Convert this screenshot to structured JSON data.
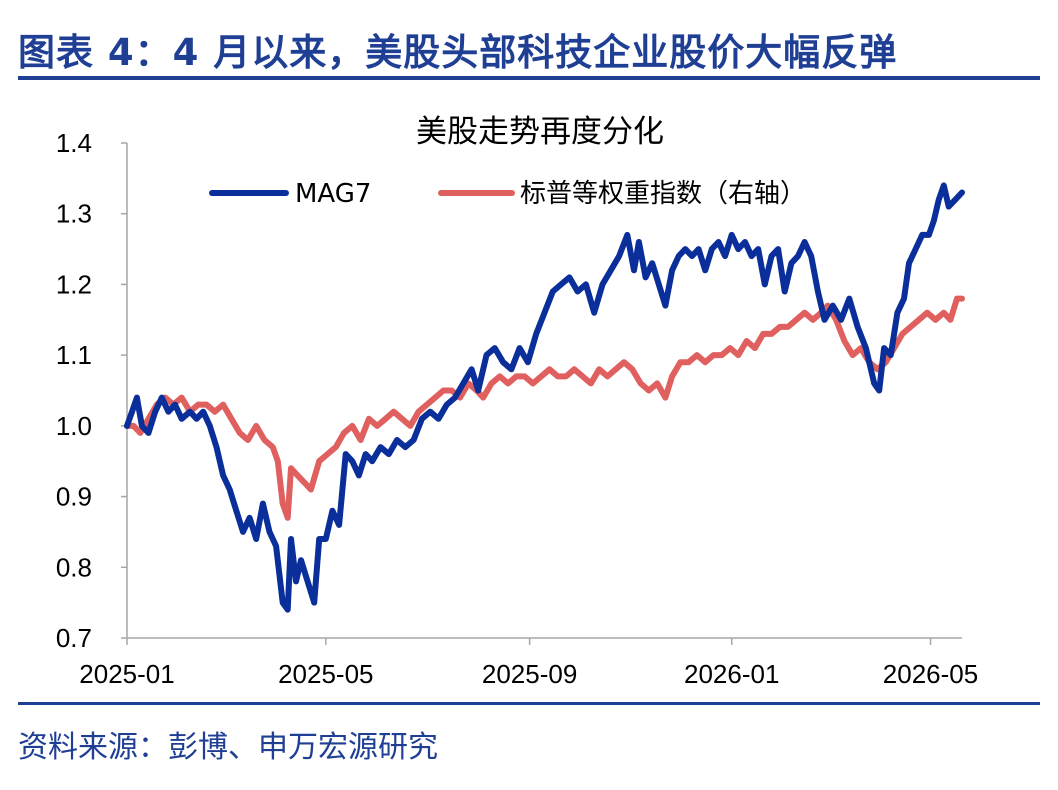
{
  "figure_title": "图表 4：4 月以来，美股头部科技企业股价大幅反弹",
  "source": "资料来源：彭博、申万宏源研究",
  "colors": {
    "accent": "#1f3f95",
    "mag7": "#0b2f9a",
    "ew": "#e06060"
  },
  "chart_data": {
    "type": "line",
    "title": "美股走势再度分化",
    "xlabel": "",
    "ylabel": "",
    "ylim": [
      0.7,
      1.4
    ],
    "y_ticks": [
      "1.4",
      "1.3",
      "1.2",
      "1.1",
      "1.0",
      "0.9",
      "0.8",
      "0.7"
    ],
    "x_range": [
      "2025-01-01",
      "2026-05-20"
    ],
    "x_ticks": [
      {
        "date": "2025-01-01",
        "label": "2025-01"
      },
      {
        "date": "2025-05-01",
        "label": "2025-05"
      },
      {
        "date": "2025-09-01",
        "label": "2025-09"
      },
      {
        "date": "2026-01-01",
        "label": "2026-01"
      },
      {
        "date": "2026-05-01",
        "label": "2026-05"
      }
    ],
    "grid": false,
    "legend_position": "top",
    "series": [
      {
        "name": "MAG7",
        "color": "#0b2f9a",
        "points": [
          [
            "2025-01-01",
            1.0
          ],
          [
            "2025-01-04",
            1.02
          ],
          [
            "2025-01-07",
            1.04
          ],
          [
            "2025-01-10",
            1.0
          ],
          [
            "2025-01-14",
            0.99
          ],
          [
            "2025-01-18",
            1.02
          ],
          [
            "2025-01-22",
            1.04
          ],
          [
            "2025-01-26",
            1.02
          ],
          [
            "2025-01-30",
            1.03
          ],
          [
            "2025-02-03",
            1.01
          ],
          [
            "2025-02-08",
            1.02
          ],
          [
            "2025-02-12",
            1.01
          ],
          [
            "2025-02-16",
            1.02
          ],
          [
            "2025-02-20",
            1.0
          ],
          [
            "2025-02-24",
            0.97
          ],
          [
            "2025-02-28",
            0.93
          ],
          [
            "2025-03-04",
            0.91
          ],
          [
            "2025-03-08",
            0.88
          ],
          [
            "2025-03-12",
            0.85
          ],
          [
            "2025-03-16",
            0.87
          ],
          [
            "2025-03-20",
            0.84
          ],
          [
            "2025-03-24",
            0.89
          ],
          [
            "2025-03-28",
            0.85
          ],
          [
            "2025-04-01",
            0.83
          ],
          [
            "2025-04-03",
            0.79
          ],
          [
            "2025-04-05",
            0.75
          ],
          [
            "2025-04-08",
            0.74
          ],
          [
            "2025-04-10",
            0.84
          ],
          [
            "2025-04-13",
            0.78
          ],
          [
            "2025-04-16",
            0.81
          ],
          [
            "2025-04-20",
            0.78
          ],
          [
            "2025-04-24",
            0.75
          ],
          [
            "2025-04-27",
            0.84
          ],
          [
            "2025-05-01",
            0.84
          ],
          [
            "2025-05-05",
            0.88
          ],
          [
            "2025-05-09",
            0.86
          ],
          [
            "2025-05-13",
            0.96
          ],
          [
            "2025-05-17",
            0.95
          ],
          [
            "2025-05-21",
            0.93
          ],
          [
            "2025-05-25",
            0.96
          ],
          [
            "2025-05-29",
            0.95
          ],
          [
            "2025-06-03",
            0.97
          ],
          [
            "2025-06-08",
            0.96
          ],
          [
            "2025-06-13",
            0.98
          ],
          [
            "2025-06-18",
            0.97
          ],
          [
            "2025-06-23",
            0.98
          ],
          [
            "2025-06-28",
            1.01
          ],
          [
            "2025-07-03",
            1.02
          ],
          [
            "2025-07-08",
            1.01
          ],
          [
            "2025-07-13",
            1.03
          ],
          [
            "2025-07-18",
            1.04
          ],
          [
            "2025-07-23",
            1.06
          ],
          [
            "2025-07-28",
            1.08
          ],
          [
            "2025-08-01",
            1.05
          ],
          [
            "2025-08-06",
            1.1
          ],
          [
            "2025-08-11",
            1.11
          ],
          [
            "2025-08-16",
            1.09
          ],
          [
            "2025-08-21",
            1.08
          ],
          [
            "2025-08-26",
            1.11
          ],
          [
            "2025-08-31",
            1.09
          ],
          [
            "2025-09-05",
            1.13
          ],
          [
            "2025-09-10",
            1.16
          ],
          [
            "2025-09-15",
            1.19
          ],
          [
            "2025-09-20",
            1.2
          ],
          [
            "2025-09-25",
            1.21
          ],
          [
            "2025-09-30",
            1.19
          ],
          [
            "2025-10-05",
            1.2
          ],
          [
            "2025-10-10",
            1.16
          ],
          [
            "2025-10-15",
            1.2
          ],
          [
            "2025-10-20",
            1.22
          ],
          [
            "2025-10-25",
            1.24
          ],
          [
            "2025-10-30",
            1.27
          ],
          [
            "2025-11-03",
            1.22
          ],
          [
            "2025-11-06",
            1.26
          ],
          [
            "2025-11-10",
            1.21
          ],
          [
            "2025-11-14",
            1.23
          ],
          [
            "2025-11-18",
            1.2
          ],
          [
            "2025-11-22",
            1.17
          ],
          [
            "2025-11-26",
            1.22
          ],
          [
            "2025-11-30",
            1.24
          ],
          [
            "2025-12-04",
            1.25
          ],
          [
            "2025-12-08",
            1.24
          ],
          [
            "2025-12-12",
            1.25
          ],
          [
            "2025-12-16",
            1.22
          ],
          [
            "2025-12-20",
            1.25
          ],
          [
            "2025-12-24",
            1.26
          ],
          [
            "2025-12-28",
            1.24
          ],
          [
            "2026-01-01",
            1.27
          ],
          [
            "2026-01-05",
            1.25
          ],
          [
            "2026-01-09",
            1.26
          ],
          [
            "2026-01-13",
            1.24
          ],
          [
            "2026-01-17",
            1.25
          ],
          [
            "2026-01-21",
            1.2
          ],
          [
            "2026-01-25",
            1.24
          ],
          [
            "2026-01-29",
            1.25
          ],
          [
            "2026-02-02",
            1.19
          ],
          [
            "2026-02-06",
            1.23
          ],
          [
            "2026-02-10",
            1.24
          ],
          [
            "2026-02-14",
            1.26
          ],
          [
            "2026-02-18",
            1.24
          ],
          [
            "2026-02-22",
            1.19
          ],
          [
            "2026-02-26",
            1.15
          ],
          [
            "2026-03-03",
            1.17
          ],
          [
            "2026-03-08",
            1.15
          ],
          [
            "2026-03-13",
            1.18
          ],
          [
            "2026-03-18",
            1.14
          ],
          [
            "2026-03-23",
            1.11
          ],
          [
            "2026-03-28",
            1.06
          ],
          [
            "2026-03-31",
            1.05
          ],
          [
            "2026-04-03",
            1.11
          ],
          [
            "2026-04-07",
            1.1
          ],
          [
            "2026-04-11",
            1.16
          ],
          [
            "2026-04-15",
            1.18
          ],
          [
            "2026-04-18",
            1.23
          ],
          [
            "2026-04-22",
            1.25
          ],
          [
            "2026-04-26",
            1.27
          ],
          [
            "2026-04-30",
            1.27
          ],
          [
            "2026-05-03",
            1.29
          ],
          [
            "2026-05-06",
            1.32
          ],
          [
            "2026-05-09",
            1.34
          ],
          [
            "2026-05-12",
            1.31
          ],
          [
            "2026-05-16",
            1.32
          ],
          [
            "2026-05-20",
            1.33
          ]
        ]
      },
      {
        "name": "标普等权重指数（右轴）",
        "color": "#e06060",
        "points": [
          [
            "2025-01-01",
            1.0
          ],
          [
            "2025-01-05",
            1.0
          ],
          [
            "2025-01-09",
            0.99
          ],
          [
            "2025-01-14",
            1.01
          ],
          [
            "2025-01-19",
            1.03
          ],
          [
            "2025-01-24",
            1.04
          ],
          [
            "2025-01-29",
            1.03
          ],
          [
            "2025-02-03",
            1.04
          ],
          [
            "2025-02-08",
            1.02
          ],
          [
            "2025-02-13",
            1.03
          ],
          [
            "2025-02-18",
            1.03
          ],
          [
            "2025-02-23",
            1.02
          ],
          [
            "2025-02-28",
            1.03
          ],
          [
            "2025-03-05",
            1.01
          ],
          [
            "2025-03-10",
            0.99
          ],
          [
            "2025-03-15",
            0.98
          ],
          [
            "2025-03-20",
            1.0
          ],
          [
            "2025-03-25",
            0.98
          ],
          [
            "2025-03-30",
            0.97
          ],
          [
            "2025-04-02",
            0.95
          ],
          [
            "2025-04-05",
            0.89
          ],
          [
            "2025-04-08",
            0.87
          ],
          [
            "2025-04-10",
            0.94
          ],
          [
            "2025-04-14",
            0.93
          ],
          [
            "2025-04-18",
            0.92
          ],
          [
            "2025-04-22",
            0.91
          ],
          [
            "2025-04-27",
            0.95
          ],
          [
            "2025-05-02",
            0.96
          ],
          [
            "2025-05-07",
            0.97
          ],
          [
            "2025-05-12",
            0.99
          ],
          [
            "2025-05-17",
            1.0
          ],
          [
            "2025-05-22",
            0.98
          ],
          [
            "2025-05-27",
            1.01
          ],
          [
            "2025-06-01",
            1.0
          ],
          [
            "2025-06-06",
            1.01
          ],
          [
            "2025-06-11",
            1.02
          ],
          [
            "2025-06-16",
            1.01
          ],
          [
            "2025-06-21",
            1.0
          ],
          [
            "2025-06-26",
            1.02
          ],
          [
            "2025-07-01",
            1.03
          ],
          [
            "2025-07-06",
            1.04
          ],
          [
            "2025-07-11",
            1.05
          ],
          [
            "2025-07-16",
            1.05
          ],
          [
            "2025-07-21",
            1.04
          ],
          [
            "2025-07-26",
            1.06
          ],
          [
            "2025-07-31",
            1.05
          ],
          [
            "2025-08-04",
            1.04
          ],
          [
            "2025-08-09",
            1.06
          ],
          [
            "2025-08-14",
            1.07
          ],
          [
            "2025-08-19",
            1.06
          ],
          [
            "2025-08-24",
            1.07
          ],
          [
            "2025-08-29",
            1.07
          ],
          [
            "2025-09-03",
            1.06
          ],
          [
            "2025-09-08",
            1.07
          ],
          [
            "2025-09-13",
            1.08
          ],
          [
            "2025-09-18",
            1.07
          ],
          [
            "2025-09-23",
            1.07
          ],
          [
            "2025-09-28",
            1.08
          ],
          [
            "2025-10-03",
            1.07
          ],
          [
            "2025-10-08",
            1.06
          ],
          [
            "2025-10-13",
            1.08
          ],
          [
            "2025-10-18",
            1.07
          ],
          [
            "2025-10-23",
            1.08
          ],
          [
            "2025-10-28",
            1.09
          ],
          [
            "2025-11-02",
            1.08
          ],
          [
            "2025-11-07",
            1.06
          ],
          [
            "2025-11-12",
            1.05
          ],
          [
            "2025-11-17",
            1.06
          ],
          [
            "2025-11-22",
            1.04
          ],
          [
            "2025-11-26",
            1.07
          ],
          [
            "2025-12-01",
            1.09
          ],
          [
            "2025-12-06",
            1.09
          ],
          [
            "2025-12-11",
            1.1
          ],
          [
            "2025-12-16",
            1.09
          ],
          [
            "2025-12-21",
            1.1
          ],
          [
            "2025-12-26",
            1.1
          ],
          [
            "2025-12-31",
            1.11
          ],
          [
            "2026-01-05",
            1.1
          ],
          [
            "2026-01-10",
            1.12
          ],
          [
            "2026-01-15",
            1.11
          ],
          [
            "2026-01-20",
            1.13
          ],
          [
            "2026-01-25",
            1.13
          ],
          [
            "2026-01-30",
            1.14
          ],
          [
            "2026-02-04",
            1.14
          ],
          [
            "2026-02-09",
            1.15
          ],
          [
            "2026-02-14",
            1.16
          ],
          [
            "2026-02-19",
            1.15
          ],
          [
            "2026-02-24",
            1.16
          ],
          [
            "2026-02-28",
            1.17
          ],
          [
            "2026-03-05",
            1.15
          ],
          [
            "2026-03-10",
            1.12
          ],
          [
            "2026-03-15",
            1.1
          ],
          [
            "2026-03-20",
            1.11
          ],
          [
            "2026-03-25",
            1.09
          ],
          [
            "2026-03-30",
            1.08
          ],
          [
            "2026-04-04",
            1.09
          ],
          [
            "2026-04-09",
            1.11
          ],
          [
            "2026-04-14",
            1.13
          ],
          [
            "2026-04-19",
            1.14
          ],
          [
            "2026-04-24",
            1.15
          ],
          [
            "2026-04-29",
            1.16
          ],
          [
            "2026-05-04",
            1.15
          ],
          [
            "2026-05-09",
            1.16
          ],
          [
            "2026-05-13",
            1.15
          ],
          [
            "2026-05-17",
            1.18
          ],
          [
            "2026-05-20",
            1.18
          ]
        ]
      }
    ]
  }
}
